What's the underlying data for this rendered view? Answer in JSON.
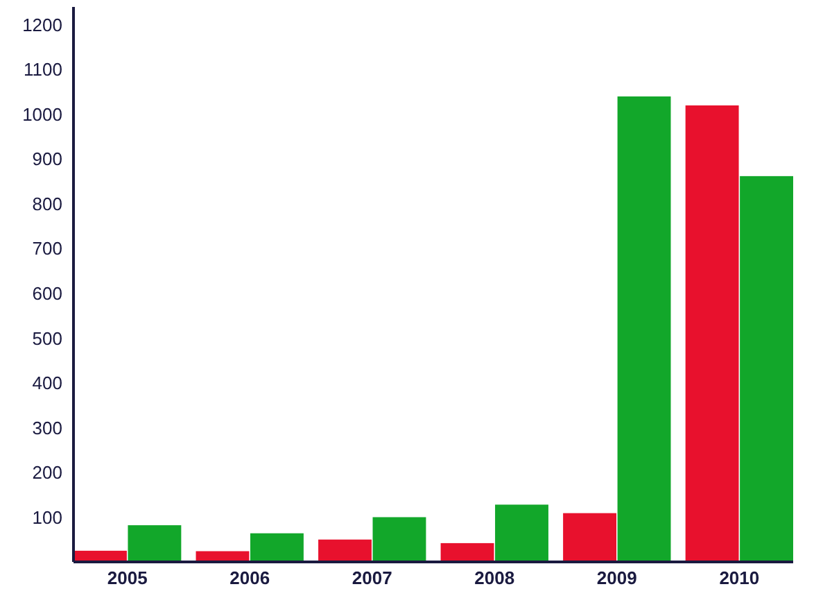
{
  "chart_data": {
    "type": "bar",
    "categories": [
      "2005",
      "2006",
      "2007",
      "2008",
      "2009",
      "2010"
    ],
    "series": [
      {
        "color": "#e8112d",
        "values": [
          25,
          24,
          50,
          42,
          109,
          1020
        ]
      },
      {
        "color": "#12a72a",
        "values": [
          82,
          64,
          100,
          128,
          1040,
          862
        ]
      }
    ],
    "ylim": [
      0,
      1240
    ],
    "yticks": [
      100,
      200,
      300,
      400,
      500,
      600,
      700,
      800,
      900,
      1000,
      1100,
      1200
    ],
    "grid": false
  }
}
